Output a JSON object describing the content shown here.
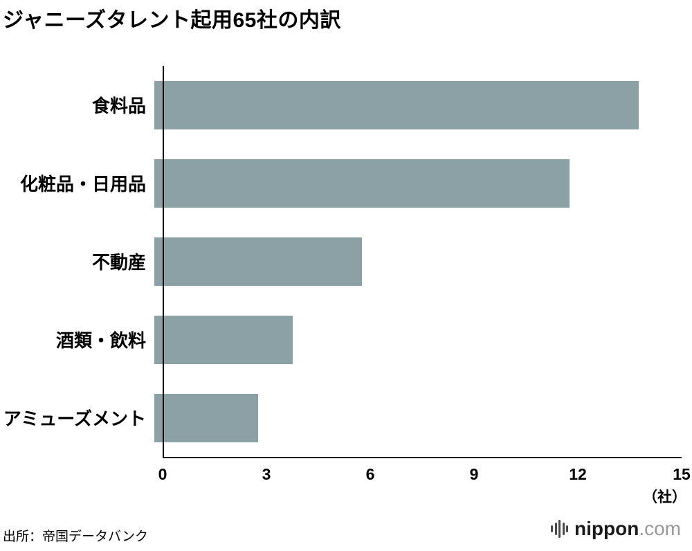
{
  "chart_data": {
    "type": "bar",
    "orientation": "horizontal",
    "title": "ジャニーズタレント起用65社の内訳",
    "categories": [
      "食料品",
      "化粧品・日用品",
      "不動産",
      "酒類・飲料",
      "アミューズメント"
    ],
    "values": [
      14,
      12,
      6,
      4,
      3
    ],
    "xlim": [
      0,
      15
    ],
    "xticks": [
      0,
      3,
      6,
      9,
      12,
      15
    ],
    "unit_label": "（社）",
    "bar_color": "#8ca1a5",
    "axis_color": "#000000",
    "grid": false,
    "legend": false
  },
  "footer": {
    "source": "出所：帝国データバンク",
    "logo": {
      "name": "nippon",
      "tld": ".com"
    }
  }
}
